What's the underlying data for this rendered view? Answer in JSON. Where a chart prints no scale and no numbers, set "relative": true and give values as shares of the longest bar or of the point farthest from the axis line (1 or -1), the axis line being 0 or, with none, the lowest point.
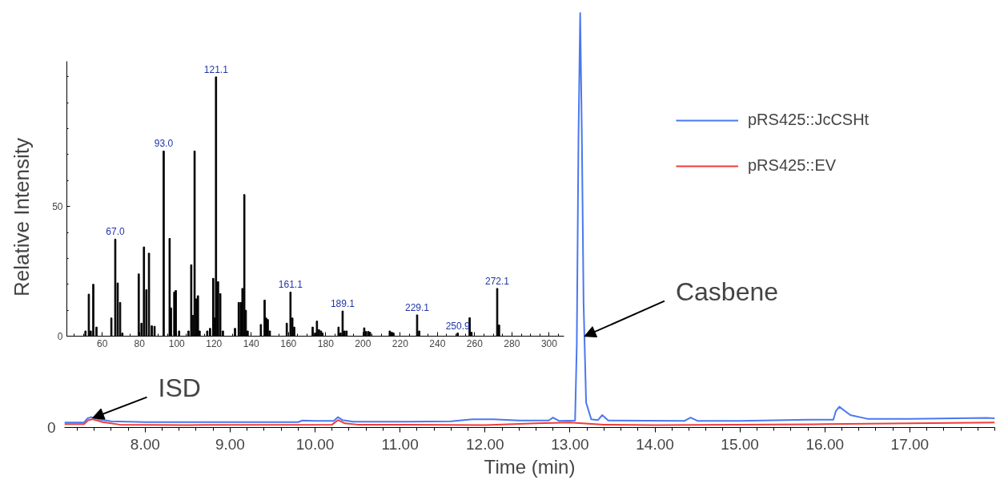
{
  "chart_data": [
    {
      "type": "line",
      "xlabel": "Time (min)",
      "ylabel": "Relative Intensity",
      "relative": true,
      "xlim": [
        7.05,
        18.0
      ],
      "xticks": [
        {
          "value": 8,
          "label": "8.00"
        },
        {
          "value": 9,
          "label": "9.00"
        },
        {
          "value": 10,
          "label": "10.00"
        },
        {
          "value": 11,
          "label": "11.00"
        },
        {
          "value": 12,
          "label": "12.00"
        },
        {
          "value": 13,
          "label": "13.00"
        },
        {
          "value": 14,
          "label": "14.00"
        },
        {
          "value": 15,
          "label": "15.00"
        },
        {
          "value": 16,
          "label": "16.00"
        },
        {
          "value": 17,
          "label": "17.00"
        }
      ],
      "legend": "top right",
      "line_style": "solid",
      "marker": "none",
      "series": [
        {
          "name": "pRS425::JcCSHt",
          "color": "#4a78f0",
          "x": [
            7.05,
            7.28,
            7.32,
            7.36,
            7.45,
            7.6,
            8.0,
            9.0,
            9.8,
            9.85,
            10.0,
            10.22,
            10.27,
            10.32,
            10.45,
            11.0,
            11.6,
            11.85,
            12.1,
            12.4,
            12.75,
            12.8,
            12.87,
            13.06,
            13.08,
            13.1,
            13.12,
            13.14,
            13.16,
            13.19,
            13.25,
            13.33,
            13.38,
            13.45,
            14.35,
            14.42,
            14.5,
            15.0,
            15.8,
            16.1,
            16.13,
            16.17,
            16.3,
            16.5,
            17.0,
            17.9,
            18.0
          ],
          "values": [
            0.012,
            0.012,
            0.022,
            0.025,
            0.02,
            0.015,
            0.013,
            0.013,
            0.013,
            0.017,
            0.016,
            0.016,
            0.025,
            0.018,
            0.014,
            0.014,
            0.015,
            0.02,
            0.02,
            0.017,
            0.017,
            0.024,
            0.016,
            0.017,
            0.2,
            0.7,
            1.0,
            0.7,
            0.3,
            0.06,
            0.02,
            0.018,
            0.03,
            0.017,
            0.016,
            0.024,
            0.016,
            0.016,
            0.019,
            0.019,
            0.04,
            0.05,
            0.03,
            0.021,
            0.021,
            0.023,
            0.022
          ]
        },
        {
          "name": "pRS425::EV",
          "color": "#f03c3c",
          "x": [
            7.05,
            7.28,
            7.33,
            7.38,
            7.5,
            7.7,
            8.5,
            10.2,
            10.27,
            10.35,
            10.5,
            12.0,
            12.6,
            13.0,
            13.4,
            14.0,
            16.0,
            18.0
          ],
          "values": [
            0.008,
            0.008,
            0.018,
            0.02,
            0.013,
            0.007,
            0.006,
            0.007,
            0.018,
            0.01,
            0.007,
            0.006,
            0.01,
            0.012,
            0.007,
            0.006,
            0.008,
            0.012
          ]
        }
      ],
      "annotations": [
        {
          "text": "ISD",
          "x": 7.38,
          "y": 0.023
        },
        {
          "text": "Casbene",
          "x": 13.17,
          "y": 0.22
        },
        "0"
      ]
    },
    {
      "type": "bar",
      "color": "#000000",
      "xlim": [
        41,
        308
      ],
      "ylim": [
        0,
        106
      ],
      "xticks": [
        60,
        80,
        100,
        120,
        140,
        160,
        180,
        200,
        220,
        240,
        260,
        280,
        300
      ],
      "yticks": [
        0,
        50
      ],
      "x": [
        51.0,
        52.8,
        53.8,
        55.2,
        56.9,
        64.9,
        67.0,
        68.3,
        69.6,
        70.8,
        79.6,
        81.1,
        82.4,
        83.7,
        85.1,
        86.6,
        88.1,
        93.0,
        96.2,
        96.9,
        98.7,
        99.5,
        101.3,
        106.3,
        107.8,
        108.7,
        109.6,
        110.5,
        111.4,
        112.3,
        116.4,
        117.9,
        119.6,
        120.3,
        121.1,
        122.2,
        123.4,
        124.8,
        131.3,
        133.3,
        134.4,
        135.3,
        136.3,
        137.1,
        138.1,
        145.2,
        147.2,
        148.0,
        148.9,
        150.0,
        159.1,
        161.1,
        162.1,
        163.1,
        173.0,
        174.3,
        175.3,
        176.4,
        177.5,
        178.3,
        186.9,
        188.0,
        189.1,
        190.1,
        191.2,
        200.7,
        201.7,
        202.9,
        203.8,
        214.4,
        215.5,
        216.4,
        229.1,
        230.2,
        250.9,
        257.3,
        258.3,
        272.1,
        273.1
      ],
      "values": [
        2,
        16.2,
        2,
        20,
        3.5,
        7,
        37.4,
        20.5,
        13,
        1.2,
        24,
        5,
        34.4,
        17.9,
        32,
        4,
        3.8,
        71.4,
        37.7,
        10.9,
        17,
        17.6,
        2,
        2,
        27.5,
        8,
        71.4,
        14.4,
        15.6,
        2,
        2,
        3,
        22.3,
        7,
        100,
        21,
        16.4,
        2,
        3,
        13,
        13,
        18.4,
        54.6,
        10,
        2,
        4.5,
        13.9,
        7,
        6.4,
        2,
        5,
        17,
        7,
        3.5,
        3.5,
        1.2,
        5.8,
        2.5,
        2,
        1.2,
        3.5,
        1.2,
        9.7,
        2,
        2,
        3.2,
        1.8,
        1.8,
        1.5,
        2,
        1.5,
        1.2,
        8.2,
        2,
        1.2,
        7.1,
        1.5,
        18.4,
        4.3
      ],
      "annotations": [
        {
          "text": "67.0",
          "x": 67.0,
          "y": 37.4
        },
        {
          "text": "93.0",
          "x": 93.0,
          "y": 71.4
        },
        {
          "text": "121.1",
          "x": 121.1,
          "y": 100
        },
        {
          "text": "161.1",
          "x": 161.1,
          "y": 17
        },
        {
          "text": "189.1",
          "x": 189.1,
          "y": 9.7
        },
        {
          "text": "229.1",
          "x": 229.1,
          "y": 8.2
        },
        {
          "text": "250.9",
          "x": 250.9,
          "y": 1.2
        },
        {
          "text": "272.1",
          "x": 272.1,
          "y": 18.4
        }
      ]
    }
  ]
}
